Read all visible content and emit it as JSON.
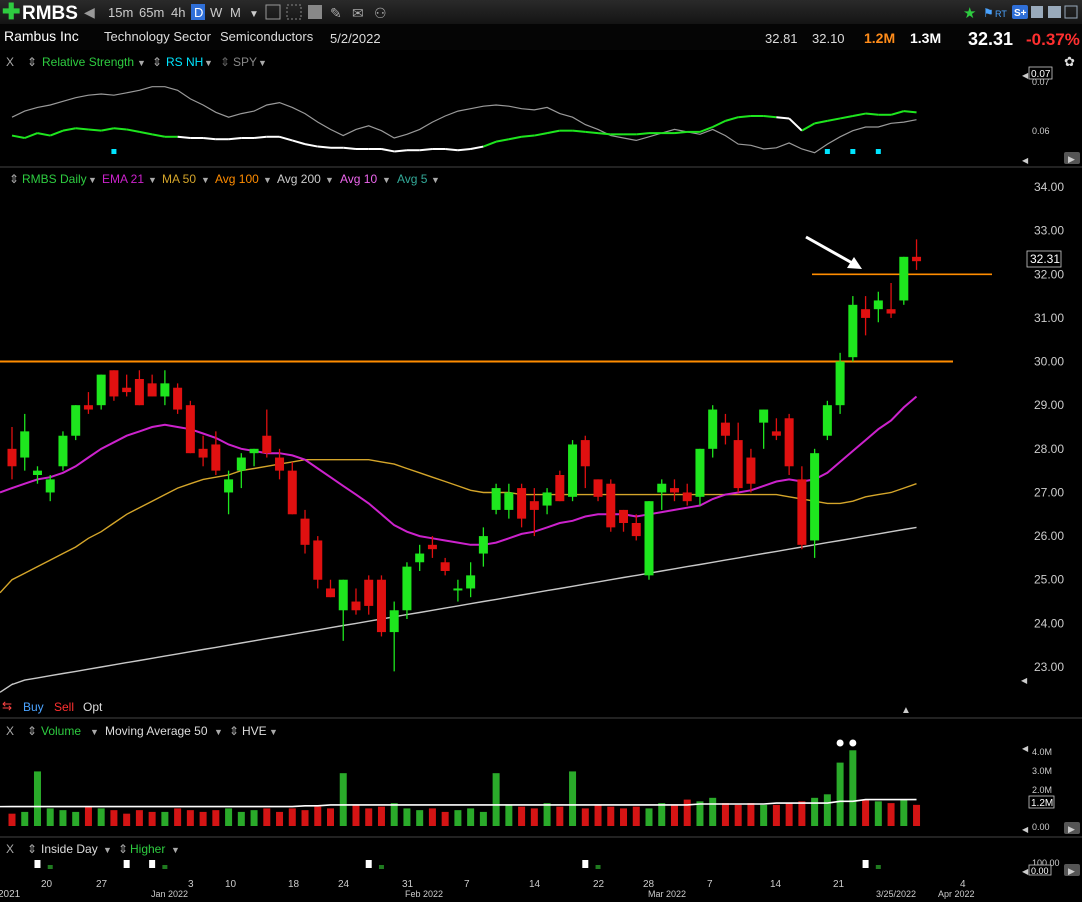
{
  "toolbar": {
    "symbol": "RMBS",
    "intervals": [
      "15m",
      "65m",
      "4h",
      "D",
      "W",
      "M"
    ],
    "active_interval": "D",
    "rt_label": "RT"
  },
  "header": {
    "company": "Rambus Inc",
    "sector": "Technology Sector",
    "industry": "Semiconductors",
    "date": "5/2/2022",
    "high": "32.81",
    "low": "32.10",
    "volume": "1.2M",
    "avg_volume": "1.3M",
    "price": "32.31",
    "change": "-0.37%"
  },
  "colors": {
    "up": "#1ee61e",
    "down": "#e01010",
    "ema21": "#cc22cc",
    "ma50": "#d4a52a",
    "avg100": "#ff8c00",
    "avg200": "#c8c8c8",
    "avg10": "#ee66ee",
    "avg5": "#33aa99",
    "volume": "#22bb22",
    "highlight": "#00e5ff"
  },
  "rs_panel": {
    "labels": [
      "Relative Strength",
      "RS NH",
      "SPY"
    ],
    "ticks": [
      "0.07",
      "0.06"
    ],
    "current": "0.07"
  },
  "price_panel": {
    "legend": [
      "RMBS Daily",
      "EMA 21",
      "MA 50",
      "Avg 100",
      "Avg 200",
      "Avg 10",
      "Avg 5"
    ],
    "price_tag": "32.31",
    "trade_buttons": [
      "Buy",
      "Sell",
      "Opt"
    ]
  },
  "volume_panel": {
    "labels": [
      "Volume",
      "Moving Average 50",
      "HVE"
    ],
    "ticks": [
      "4.0M",
      "3.0M",
      "2.0M",
      "0.00"
    ],
    "current": "1.2M"
  },
  "inside_panel": {
    "labels": [
      "Inside Day",
      "Higher"
    ],
    "ticks": [
      "100.00",
      "0.00"
    ]
  },
  "x_axis": {
    "labels": [
      "2021",
      "20",
      "27",
      "Jan 2022",
      "3",
      "10",
      "18",
      "24",
      "31",
      "Feb 2022",
      "7",
      "14",
      "22",
      "28",
      "Mar 2022",
      "7",
      "14",
      "21",
      "3/25/2022",
      "4",
      "Apr 2022"
    ]
  },
  "chart_data": {
    "type": "candlestick",
    "y_ticks": [
      "34.00",
      "33.00",
      "32.00",
      "31.00",
      "30.00",
      "29.00",
      "28.00",
      "27.00",
      "26.00",
      "25.00",
      "24.00",
      "23.00"
    ],
    "ylim": [
      22.5,
      34.2
    ],
    "resistance_levels": [
      30.0,
      32.0
    ],
    "candles": [
      [
        28.0,
        28.5,
        27.3,
        27.6
      ],
      [
        27.8,
        28.8,
        27.5,
        28.4
      ],
      [
        27.4,
        27.6,
        27.2,
        27.5
      ],
      [
        27.0,
        27.4,
        26.8,
        27.3
      ],
      [
        27.6,
        28.4,
        27.5,
        28.3
      ],
      [
        28.3,
        29.0,
        28.2,
        29.0
      ],
      [
        29.0,
        29.3,
        28.8,
        28.9
      ],
      [
        29.0,
        29.7,
        28.9,
        29.7
      ],
      [
        29.8,
        29.8,
        29.1,
        29.2
      ],
      [
        29.4,
        29.7,
        29.2,
        29.3
      ],
      [
        29.6,
        29.8,
        29.0,
        29.0
      ],
      [
        29.5,
        29.7,
        29.2,
        29.2
      ],
      [
        29.2,
        29.8,
        29.0,
        29.5
      ],
      [
        29.4,
        29.5,
        28.8,
        28.9
      ],
      [
        29.0,
        29.1,
        27.9,
        27.9
      ],
      [
        28.0,
        28.3,
        27.6,
        27.8
      ],
      [
        28.1,
        28.4,
        27.4,
        27.5
      ],
      [
        27.0,
        27.5,
        26.5,
        27.3
      ],
      [
        27.5,
        27.9,
        27.1,
        27.8
      ],
      [
        27.9,
        28.0,
        27.6,
        28.0
      ],
      [
        28.3,
        28.9,
        27.8,
        27.9
      ],
      [
        27.8,
        28.0,
        27.3,
        27.5
      ],
      [
        27.5,
        27.7,
        26.5,
        26.5
      ],
      [
        26.4,
        26.6,
        25.6,
        25.8
      ],
      [
        25.9,
        26.0,
        24.8,
        25.0
      ],
      [
        24.8,
        25.0,
        24.6,
        24.6
      ],
      [
        24.3,
        25.0,
        23.6,
        25.0
      ],
      [
        24.5,
        24.8,
        24.2,
        24.3
      ],
      [
        25.0,
        25.1,
        24.2,
        24.4
      ],
      [
        25.0,
        25.1,
        23.7,
        23.8
      ],
      [
        23.8,
        24.5,
        22.9,
        24.3
      ],
      [
        24.3,
        25.4,
        24.1,
        25.3
      ],
      [
        25.4,
        25.8,
        25.2,
        25.6
      ],
      [
        25.8,
        26.0,
        25.5,
        25.7
      ],
      [
        25.4,
        25.5,
        25.1,
        25.2
      ],
      [
        24.8,
        25.0,
        24.5,
        24.8
      ],
      [
        24.8,
        25.4,
        24.6,
        25.1
      ],
      [
        25.6,
        26.2,
        25.3,
        26.0
      ],
      [
        26.6,
        27.2,
        26.5,
        27.1
      ],
      [
        26.6,
        27.2,
        26.4,
        27.0
      ],
      [
        27.1,
        27.2,
        26.2,
        26.4
      ],
      [
        26.8,
        27.1,
        26.0,
        26.6
      ],
      [
        26.7,
        27.1,
        26.5,
        27.0
      ],
      [
        27.4,
        27.5,
        26.8,
        26.8
      ],
      [
        26.9,
        28.2,
        26.8,
        28.1
      ],
      [
        28.2,
        28.3,
        27.1,
        27.6
      ],
      [
        27.3,
        27.3,
        26.8,
        26.9
      ],
      [
        27.2,
        27.3,
        26.1,
        26.2
      ],
      [
        26.6,
        26.6,
        26.1,
        26.3
      ],
      [
        26.3,
        26.5,
        25.9,
        26.0
      ],
      [
        25.1,
        26.8,
        25.0,
        26.8
      ],
      [
        27.0,
        27.3,
        26.6,
        27.2
      ],
      [
        27.1,
        27.3,
        26.8,
        27.0
      ],
      [
        27.0,
        27.2,
        26.7,
        26.8
      ],
      [
        26.9,
        28.0,
        26.7,
        28.0
      ],
      [
        28.0,
        29.0,
        27.8,
        28.9
      ],
      [
        28.6,
        28.8,
        28.1,
        28.3
      ],
      [
        28.2,
        28.6,
        27.0,
        27.1
      ],
      [
        27.8,
        28.0,
        27.0,
        27.2
      ],
      [
        28.6,
        28.9,
        28.0,
        28.9
      ],
      [
        28.4,
        28.7,
        28.2,
        28.3
      ],
      [
        28.7,
        28.8,
        27.4,
        27.6
      ],
      [
        27.3,
        27.6,
        25.7,
        25.8
      ],
      [
        25.9,
        28.0,
        25.5,
        27.9
      ],
      [
        28.3,
        29.1,
        28.2,
        29.0
      ],
      [
        29.0,
        30.2,
        28.8,
        30.0
      ],
      [
        30.1,
        31.5,
        30.0,
        31.3
      ],
      [
        31.2,
        31.5,
        30.6,
        31.0
      ],
      [
        31.2,
        31.6,
        30.9,
        31.4
      ],
      [
        31.2,
        31.8,
        31.0,
        31.1
      ],
      [
        31.4,
        32.4,
        31.3,
        32.4
      ],
      [
        32.4,
        32.8,
        32.1,
        32.3
      ]
    ],
    "ema21": [
      27.1,
      27.2,
      27.3,
      27.35,
      27.45,
      27.6,
      27.8,
      28.0,
      28.15,
      28.3,
      28.4,
      28.5,
      28.55,
      28.5,
      28.45,
      28.35,
      28.25,
      28.1,
      28.0,
      27.95,
      27.9,
      27.9,
      27.85,
      27.75,
      27.55,
      27.35,
      27.15,
      26.95,
      26.75,
      26.5,
      26.25,
      26.1,
      26.0,
      25.95,
      25.9,
      25.85,
      25.8,
      25.8,
      25.85,
      25.95,
      26.05,
      26.1,
      26.2,
      26.3,
      26.35,
      26.45,
      26.5,
      26.5,
      26.5,
      26.45,
      26.5,
      26.55,
      26.6,
      26.65,
      26.7,
      26.85,
      26.95,
      27.0,
      27.05,
      27.15,
      27.25,
      27.3,
      27.25,
      27.3,
      27.45,
      27.7,
      27.95,
      28.2,
      28.45,
      28.65,
      28.95,
      29.2
    ],
    "ma50": [
      25.0,
      25.15,
      25.3,
      25.45,
      25.6,
      25.75,
      25.95,
      26.1,
      26.3,
      26.5,
      26.65,
      26.8,
      26.95,
      27.1,
      27.2,
      27.3,
      27.35,
      27.4,
      27.5,
      27.55,
      27.6,
      27.65,
      27.7,
      27.75,
      27.75,
      27.75,
      27.75,
      27.75,
      27.75,
      27.7,
      27.65,
      27.55,
      27.45,
      27.35,
      27.25,
      27.15,
      27.05,
      27.0,
      27.0,
      27.0,
      26.95,
      26.95,
      26.95,
      26.95,
      26.95,
      26.95,
      26.95,
      26.95,
      26.95,
      26.95,
      26.95,
      26.95,
      26.95,
      26.95,
      26.95,
      26.95,
      26.95,
      26.95,
      26.95,
      26.95,
      26.95,
      26.9,
      26.85,
      26.8,
      26.75,
      26.75,
      26.8,
      26.9,
      26.95,
      27.0,
      27.1,
      27.2
    ],
    "avg200": [
      22.6,
      22.7,
      22.75,
      22.8,
      22.85,
      22.9,
      22.95,
      23.0,
      23.05,
      23.1,
      23.15,
      23.2,
      23.25,
      23.3,
      23.35,
      23.4,
      23.45,
      23.5,
      23.55,
      23.6,
      23.65,
      23.7,
      23.75,
      23.8,
      23.85,
      23.9,
      23.95,
      24.0,
      24.05,
      24.1,
      24.15,
      24.2,
      24.25,
      24.3,
      24.35,
      24.4,
      24.45,
      24.5,
      24.55,
      24.6,
      24.65,
      24.7,
      24.75,
      24.8,
      24.85,
      24.9,
      24.95,
      25.0,
      25.05,
      25.1,
      25.15,
      25.2,
      25.25,
      25.3,
      25.35,
      25.4,
      25.45,
      25.5,
      25.55,
      25.6,
      25.65,
      25.7,
      25.75,
      25.8,
      25.85,
      25.9,
      25.95,
      26.0,
      26.05,
      26.1,
      26.15,
      26.2
    ],
    "volume": {
      "values": [
        0.7,
        0.8,
        3.1,
        1.0,
        0.9,
        0.8,
        1.1,
        1.0,
        0.9,
        0.7,
        0.9,
        0.8,
        0.8,
        1.0,
        0.9,
        0.8,
        0.9,
        1.0,
        0.8,
        0.9,
        1.0,
        0.8,
        1.0,
        0.9,
        1.1,
        1.0,
        3.0,
        1.2,
        1.0,
        1.1,
        1.3,
        1.0,
        0.9,
        1.0,
        0.8,
        0.9,
        1.0,
        0.8,
        3.0,
        1.2,
        1.1,
        1.0,
        1.3,
        1.1,
        3.1,
        1.0,
        1.2,
        1.1,
        1.0,
        1.1,
        1.0,
        1.3,
        1.2,
        1.5,
        1.4,
        1.6,
        1.3,
        1.2,
        1.3,
        1.2,
        1.2,
        1.3,
        1.4,
        1.6,
        1.8,
        3.6,
        4.3,
        1.5,
        1.4,
        1.3,
        1.5,
        1.2
      ],
      "ma50": [
        1.1,
        1.1,
        1.1,
        1.1,
        1.1,
        1.1,
        1.1,
        1.1,
        1.1,
        1.1,
        1.1,
        1.1,
        1.1,
        1.1,
        1.1,
        1.1,
        1.1,
        1.1,
        1.1,
        1.1,
        1.1,
        1.1,
        1.1,
        1.15,
        1.15,
        1.2,
        1.2,
        1.2,
        1.2,
        1.2,
        1.2,
        1.2,
        1.2,
        1.2,
        1.2,
        1.2,
        1.2,
        1.2,
        1.2,
        1.2,
        1.2,
        1.2,
        1.2,
        1.2,
        1.2,
        1.2,
        1.2,
        1.2,
        1.2,
        1.2,
        1.2,
        1.2,
        1.2,
        1.2,
        1.25,
        1.25,
        1.25,
        1.25,
        1.25,
        1.25,
        1.3,
        1.3,
        1.3,
        1.3,
        1.3,
        1.4,
        1.4,
        1.5,
        1.5,
        1.5,
        1.5,
        1.5
      ],
      "hve_markers": [
        65,
        66
      ],
      "ylim": [
        0,
        4.6
      ]
    },
    "relative_strength": {
      "rs": [
        0.066,
        0.0658,
        0.0662,
        0.066,
        0.0664,
        0.0666,
        0.0665,
        0.0664,
        0.0666,
        0.0665,
        0.0663,
        0.0661,
        0.0659,
        0.0659,
        0.0658,
        0.0658,
        0.0657,
        0.0657,
        0.0658,
        0.0658,
        0.0659,
        0.0659,
        0.0656,
        0.0653,
        0.0651,
        0.065,
        0.065,
        0.0649,
        0.0649,
        0.0649,
        0.0647,
        0.0648,
        0.0648,
        0.0649,
        0.0649,
        0.0648,
        0.0649,
        0.0651,
        0.0655,
        0.0657,
        0.0659,
        0.066,
        0.0662,
        0.0664,
        0.0664,
        0.0663,
        0.0662,
        0.0661,
        0.0661,
        0.0661,
        0.0662,
        0.0662,
        0.0662,
        0.0663,
        0.0663,
        0.0667,
        0.0672,
        0.0675,
        0.0676,
        0.0676,
        0.0675,
        0.0674,
        0.0664,
        0.067,
        0.0672,
        0.0674,
        0.0676,
        0.0678,
        0.0677,
        0.0677,
        0.068,
        0.0679
      ],
      "spy": [
        0.0675,
        0.068,
        0.0683,
        0.0685,
        0.0688,
        0.0691,
        0.0693,
        0.0694,
        0.0693,
        0.0695,
        0.0697,
        0.07,
        0.07,
        0.0697,
        0.069,
        0.0685,
        0.0679,
        0.0675,
        0.0678,
        0.068,
        0.0685,
        0.0687,
        0.0683,
        0.0678,
        0.0671,
        0.0665,
        0.066,
        0.0665,
        0.0668,
        0.0664,
        0.0658,
        0.0661,
        0.0665,
        0.0671,
        0.0676,
        0.068,
        0.0682,
        0.0684,
        0.0685,
        0.0684,
        0.0682,
        0.0681,
        0.0683,
        0.0678,
        0.0675,
        0.0669,
        0.0665,
        0.066,
        0.0658,
        0.0656,
        0.0659,
        0.0662,
        0.0665,
        0.0663,
        0.0661,
        0.0665,
        0.066,
        0.0653,
        0.0652,
        0.0649,
        0.065,
        0.0654,
        0.0649,
        0.0646,
        0.0653,
        0.0659,
        0.0664,
        0.0667,
        0.0667,
        0.067,
        0.0671,
        0.0673
      ],
      "nh_markers": [
        8,
        64,
        66,
        68
      ],
      "ylim": [
        0.064,
        0.0712
      ]
    },
    "inside_day_markers": [
      2,
      9,
      11,
      28,
      45,
      67
    ]
  }
}
